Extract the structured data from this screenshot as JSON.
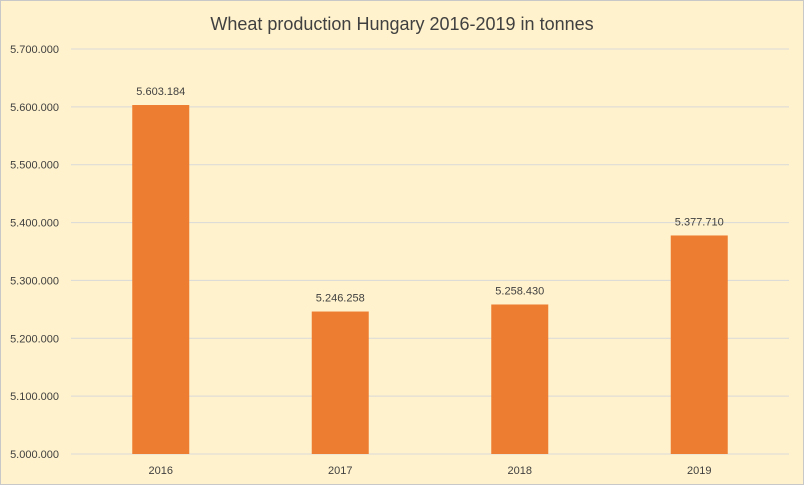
{
  "chart_data": {
    "type": "bar",
    "title": "Wheat production Hungary 2016-2019 in tonnes",
    "categories": [
      "2016",
      "2017",
      "2018",
      "2019"
    ],
    "values": [
      5603184,
      5246258,
      5258430,
      5377710
    ],
    "data_labels": [
      "5.603.184",
      "5.246.258",
      "5.258.430",
      "5.377.710"
    ],
    "ylim": [
      5000000,
      5700000
    ],
    "y_ticks": [
      5000000,
      5100000,
      5200000,
      5300000,
      5400000,
      5500000,
      5600000,
      5700000
    ],
    "y_tick_labels": [
      "5.000.000",
      "5.100.000",
      "5.200.000",
      "5.300.000",
      "5.400.000",
      "5.500.000",
      "5.600.000",
      "5.700.000"
    ],
    "grid": true,
    "legend": "none",
    "colors": {
      "bar": "#ed7d31",
      "background": "#fff2cc",
      "grid": "#d9d9d9",
      "text": "#404040"
    }
  }
}
